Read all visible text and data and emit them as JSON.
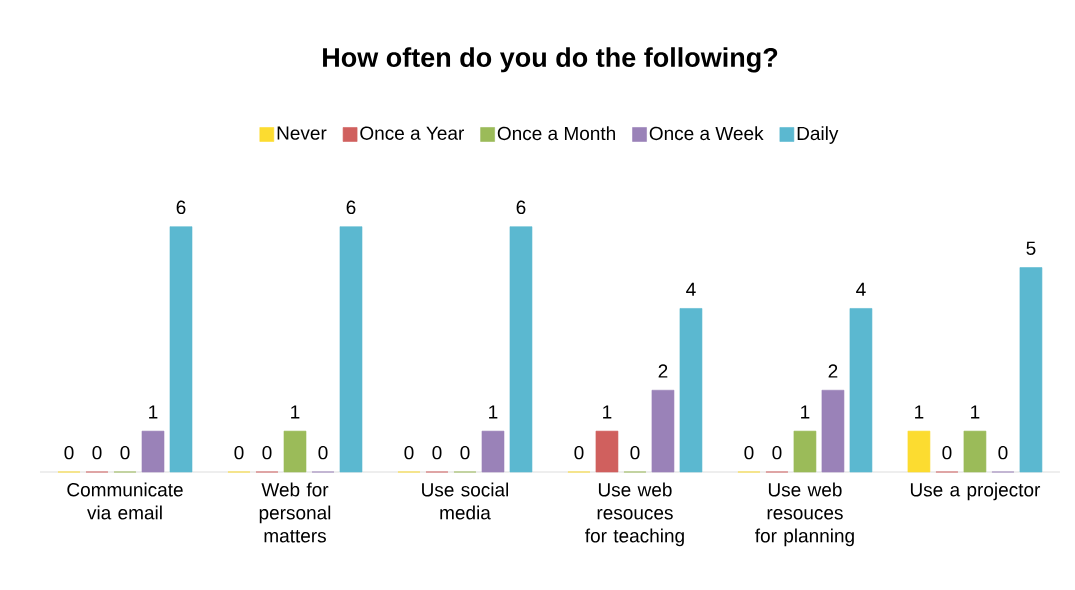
{
  "chart_data": {
    "type": "bar",
    "title": "How often do you do the following?",
    "categories": [
      "Communicate via email",
      "Web for personal matters",
      "Use social media",
      "Use web resouces for teaching",
      "Use web resouces for planning",
      "Use a projector"
    ],
    "series": [
      {
        "name": "Never",
        "color": "#fcdc30",
        "values": [
          0,
          0,
          0,
          0,
          0,
          1
        ]
      },
      {
        "name": "Once a Year",
        "color": "#d0605e",
        "values": [
          0,
          0,
          0,
          1,
          0,
          0
        ]
      },
      {
        "name": "Once a Month",
        "color": "#9bbb59",
        "values": [
          0,
          1,
          0,
          0,
          1,
          1
        ]
      },
      {
        "name": "Once a Week",
        "color": "#9a82b8",
        "values": [
          1,
          0,
          1,
          2,
          2,
          0
        ]
      },
      {
        "name": "Daily",
        "color": "#5bb8d0",
        "values": [
          6,
          6,
          6,
          4,
          4,
          5
        ]
      }
    ],
    "data_labels": true,
    "legend": "top"
  }
}
